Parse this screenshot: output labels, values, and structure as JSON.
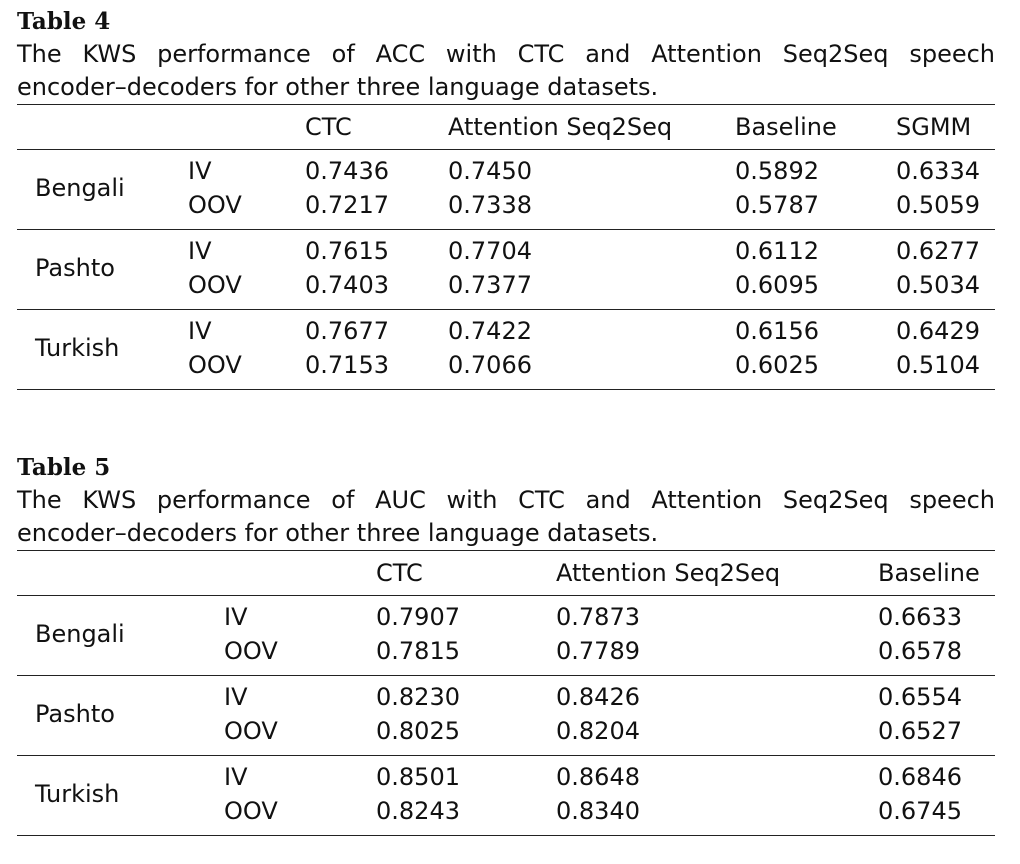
{
  "tables": [
    {
      "label": "Table 4",
      "caption_line1": "The KWS performance of ACC with CTC and Attention Seq2Seq speech",
      "caption_line2": "encoder–decoders for other three language datasets.",
      "columns": [
        "",
        "",
        "CTC",
        "Attention Seq2Seq",
        "Baseline",
        "SGMM"
      ],
      "groups": [
        {
          "language": "Bengali",
          "rows": [
            {
              "type": "IV",
              "values": [
                "0.7436",
                "0.7450",
                "0.5892",
                "0.6334"
              ]
            },
            {
              "type": "OOV",
              "values": [
                "0.7217",
                "0.7338",
                "0.5787",
                "0.5059"
              ]
            }
          ]
        },
        {
          "language": "Pashto",
          "rows": [
            {
              "type": "IV",
              "values": [
                "0.7615",
                "0.7704",
                "0.6112",
                "0.6277"
              ]
            },
            {
              "type": "OOV",
              "values": [
                "0.7403",
                "0.7377",
                "0.6095",
                "0.5034"
              ]
            }
          ]
        },
        {
          "language": "Turkish",
          "rows": [
            {
              "type": "IV",
              "values": [
                "0.7677",
                "0.7422",
                "0.6156",
                "0.6429"
              ]
            },
            {
              "type": "OOV",
              "values": [
                "0.7153",
                "0.7066",
                "0.6025",
                "0.5104"
              ]
            }
          ]
        }
      ]
    },
    {
      "label": "Table 5",
      "caption_line1": "The KWS performance of AUC with CTC and Attention Seq2Seq speech",
      "caption_line2": "encoder–decoders for other three language datasets.",
      "columns": [
        "",
        "",
        "CTC",
        "Attention Seq2Seq",
        "Baseline"
      ],
      "groups": [
        {
          "language": "Bengali",
          "rows": [
            {
              "type": "IV",
              "values": [
                "0.7907",
                "0.7873",
                "0.6633"
              ]
            },
            {
              "type": "OOV",
              "values": [
                "0.7815",
                "0.7789",
                "0.6578"
              ]
            }
          ]
        },
        {
          "language": "Pashto",
          "rows": [
            {
              "type": "IV",
              "values": [
                "0.8230",
                "0.8426",
                "0.6554"
              ]
            },
            {
              "type": "OOV",
              "values": [
                "0.8025",
                "0.8204",
                "0.6527"
              ]
            }
          ]
        },
        {
          "language": "Turkish",
          "rows": [
            {
              "type": "IV",
              "values": [
                "0.8501",
                "0.8648",
                "0.6846"
              ]
            },
            {
              "type": "OOV",
              "values": [
                "0.8243",
                "0.8340",
                "0.6745"
              ]
            }
          ]
        }
      ]
    }
  ]
}
